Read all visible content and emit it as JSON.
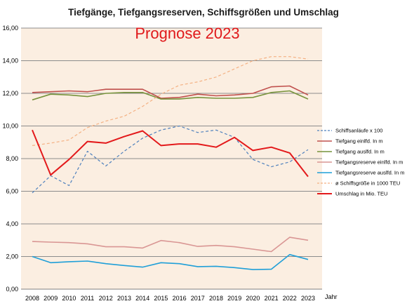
{
  "chart_data": {
    "type": "line",
    "title": "Tiefgänge, Tiefgangsreserven, Schiffsgrößen und Umschlag",
    "subtitle": "Prognose 2023",
    "xlabel": "Jahr",
    "ylabel": "",
    "ylim": [
      0,
      16
    ],
    "y_ticks": [
      "0,00",
      "2,00",
      "4,00",
      "6,00",
      "8,00",
      "10,00",
      "12,00",
      "14,00",
      "16,00"
    ],
    "x": [
      "2008",
      "2009",
      "2010",
      "2011",
      "2012",
      "2013",
      "2014",
      "2015",
      "2016",
      "2017",
      "2018",
      "2019",
      "2020",
      "2021",
      "2022",
      "2023"
    ],
    "grid": true,
    "legend_position": "right",
    "series": [
      {
        "name": "Schiffsanläufe x 100",
        "color": "#4f81bd",
        "dash": "dashed",
        "values": [
          5.9,
          6.95,
          6.35,
          8.45,
          7.55,
          8.45,
          9.25,
          9.75,
          10.0,
          9.6,
          9.75,
          9.3,
          7.95,
          7.5,
          7.8,
          8.55
        ]
      },
      {
        "name": "Tiefgang einlfd. In m",
        "color": "#c0504d",
        "dash": "solid",
        "values": [
          12.05,
          12.1,
          12.15,
          12.1,
          12.25,
          12.25,
          12.25,
          11.7,
          11.75,
          11.95,
          11.85,
          11.9,
          12.0,
          12.4,
          12.45,
          11.9
        ]
      },
      {
        "name": "Tiefgang auslfd. In m",
        "color": "#77933c",
        "dash": "solid",
        "values": [
          11.6,
          11.95,
          11.9,
          11.8,
          12.0,
          12.05,
          12.05,
          11.65,
          11.65,
          11.75,
          11.7,
          11.7,
          11.75,
          12.05,
          12.15,
          11.65
        ]
      },
      {
        "name": "Tiefgangsreserve einlfd. In m",
        "color": "#d99694",
        "dash": "solid",
        "values": [
          2.92,
          2.88,
          2.85,
          2.78,
          2.6,
          2.6,
          2.52,
          2.98,
          2.85,
          2.62,
          2.68,
          2.6,
          2.45,
          2.3,
          3.18,
          3.0
        ]
      },
      {
        "name": "Tiefgangsreserve auslfd. In m",
        "color": "#1f9fd8",
        "dash": "solid",
        "values": [
          2.0,
          1.62,
          1.68,
          1.72,
          1.56,
          1.45,
          1.35,
          1.62,
          1.56,
          1.38,
          1.4,
          1.32,
          1.2,
          1.22,
          2.12,
          1.82
        ]
      },
      {
        "name": "ø Schiffsgröße in 1000 TEU",
        "color": "#f4b183",
        "dash": "dashed",
        "values": [
          8.8,
          8.95,
          9.15,
          9.9,
          10.3,
          10.6,
          11.2,
          11.95,
          12.5,
          12.7,
          13.0,
          13.5,
          14.0,
          14.25,
          14.25,
          14.1
        ]
      },
      {
        "name": "Umschlag in Mio. TEU",
        "color": "#e3191b",
        "dash": "solid",
        "values": [
          9.75,
          7.0,
          7.95,
          9.05,
          8.95,
          9.35,
          9.7,
          8.8,
          8.9,
          8.9,
          8.7,
          9.3,
          8.5,
          8.7,
          8.35,
          6.9
        ]
      }
    ]
  }
}
